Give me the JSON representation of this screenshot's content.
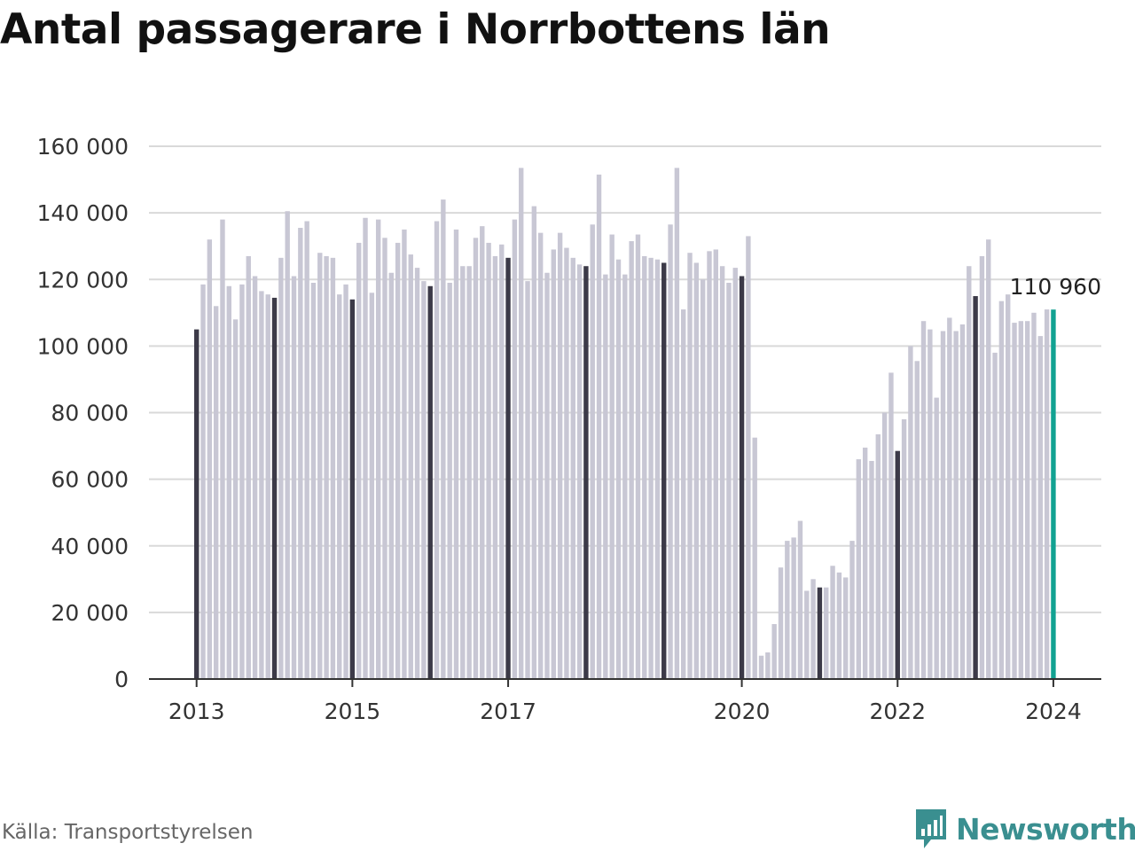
{
  "title": "Antal passagerare i Norrbottens län",
  "source": "Källa: Transportstyrelsen",
  "brand": "Newsworthy",
  "colors": {
    "bar": "#c8c7d4",
    "january": "#3c3a48",
    "highlight": "#12a292",
    "grid": "#d9d9d9",
    "axis": "#333333",
    "brand": "#3a8f90"
  },
  "chart_data": {
    "type": "bar",
    "title": "Antal passagerare i Norrbottens län",
    "xlabel": "",
    "ylabel": "",
    "ylim": [
      0,
      160000
    ],
    "grid": true,
    "start": "2013-01",
    "frequency": "monthly",
    "yticks": [
      0,
      20000,
      40000,
      60000,
      80000,
      100000,
      120000,
      140000,
      160000
    ],
    "ytick_labels": [
      "0",
      "20 000",
      "40 000",
      "60 000",
      "80 000",
      "100 000",
      "120 000",
      "140 000",
      "160 000"
    ],
    "xticks": [
      {
        "label": "2013",
        "month": "2013-01"
      },
      {
        "label": "2015",
        "month": "2015-01"
      },
      {
        "label": "2017",
        "month": "2017-01"
      },
      {
        "label": "2020",
        "month": "2020-01"
      },
      {
        "label": "2022",
        "month": "2022-01"
      },
      {
        "label": "2024",
        "month": "2024-01"
      }
    ],
    "annotation": {
      "label": "110 960",
      "month": "2024-01",
      "value": 110960
    },
    "values": [
      105000,
      118500,
      132000,
      112000,
      138000,
      118000,
      108000,
      118500,
      127000,
      121000,
      116500,
      115500,
      114500,
      126500,
      140500,
      121000,
      135500,
      137500,
      119000,
      128000,
      127000,
      126500,
      115500,
      118500,
      114000,
      131000,
      138500,
      116000,
      138000,
      132500,
      122000,
      131000,
      135000,
      127500,
      123500,
      119500,
      118000,
      137500,
      144000,
      119000,
      135000,
      124000,
      124000,
      132500,
      136000,
      131000,
      127000,
      130500,
      126500,
      138000,
      153500,
      119500,
      142000,
      134000,
      122000,
      129000,
      134000,
      129500,
      126500,
      124500,
      124000,
      136500,
      151500,
      121500,
      133500,
      126000,
      121500,
      131500,
      133500,
      127000,
      126500,
      126000,
      125000,
      136500,
      153500,
      111000,
      128000,
      125000,
      120000,
      128500,
      129000,
      124000,
      119000,
      123500,
      121000,
      133000,
      72500,
      7000,
      8000,
      16500,
      33500,
      41500,
      42500,
      47500,
      26500,
      30000,
      27500,
      27500,
      34000,
      32000,
      30500,
      41500,
      66000,
      69500,
      65500,
      73500,
      80000,
      92000,
      68500,
      78000,
      100000,
      95500,
      107500,
      105000,
      84500,
      104500,
      108500,
      104500,
      106500,
      124000,
      115000,
      127000,
      132000,
      98000,
      113500,
      115500,
      107000,
      107500,
      107500,
      110000,
      103000,
      111000,
      110960
    ]
  }
}
